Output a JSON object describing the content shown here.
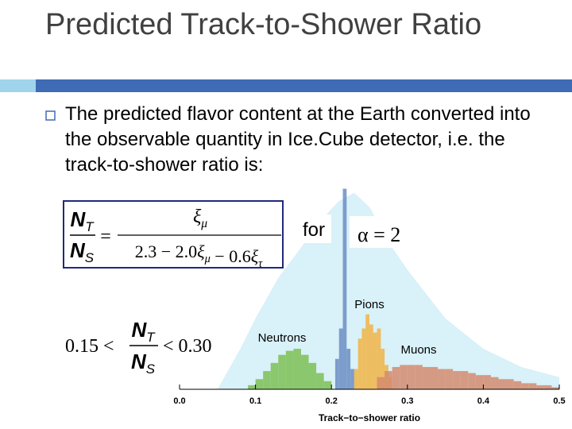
{
  "slide": {
    "title": "Predicted Track-to-Shower Ratio",
    "bullet": "The predicted flavor content at the Earth converted into the observable quantity in Ice.Cube detector, i.e. the track-to-shower ratio is:",
    "formula": {
      "lhs": {
        "num": {
          "base": "N",
          "sub": "T"
        },
        "den": {
          "base": "N",
          "sub": "S"
        }
      },
      "eq": "=",
      "rhs": {
        "num": [
          {
            "base": "ξ",
            "sub": "μ"
          }
        ],
        "den": [
          "2.3 − 2.0",
          {
            "base": "ξ",
            "sub": "μ"
          },
          " − 0.6",
          {
            "base": "ξ",
            "sub": "τ"
          }
        ]
      }
    },
    "for_text": "for",
    "condition": "α = 2",
    "range": {
      "left": "0.15 <",
      "num": {
        "base": "N",
        "sub": "T"
      },
      "den": {
        "base": "N",
        "sub": "S"
      },
      "right": "< 0.30"
    }
  },
  "chart_data": {
    "type": "histogram",
    "xlabel": "Track−to−shower ratio",
    "xlim": [
      0,
      0.5
    ],
    "xticks": [
      {
        "value": 0,
        "label": "0.0"
      },
      0.1,
      0.2,
      0.3,
      0.4,
      0.5
    ],
    "ylim": [
      0,
      100
    ],
    "series": [
      {
        "type": "area",
        "color": "#d9f1f8",
        "x": [
          0.05,
          0.08,
          0.1,
          0.13,
          0.16,
          0.19,
          0.21,
          0.23,
          0.25,
          0.28,
          0.3,
          0.35,
          0.4,
          0.45,
          0.5
        ],
        "values": [
          0,
          20,
          35,
          55,
          70,
          85,
          93,
          97,
          90,
          70,
          59,
          35,
          20,
          11,
          6
        ]
      },
      {
        "name": "Neutrons",
        "color": "#7dbf55",
        "bins": [
          0.09,
          0.1,
          0.11,
          0.12,
          0.13,
          0.14,
          0.15,
          0.16,
          0.17,
          0.18,
          0.19,
          0.2
        ],
        "values": [
          2,
          5,
          9,
          13,
          17,
          19,
          20,
          17,
          13,
          8,
          4
        ]
      },
      {
        "color": "#6b8ec4",
        "bins": [
          0.205,
          0.21,
          0.215,
          0.22,
          0.225,
          0.23
        ],
        "values": [
          15,
          30,
          99,
          20,
          10
        ]
      },
      {
        "name": "Pions",
        "color": "#f0b445",
        "bins": [
          0.23,
          0.235,
          0.24,
          0.245,
          0.25,
          0.255,
          0.26,
          0.265,
          0.27,
          0.275,
          0.28
        ],
        "values": [
          10,
          25,
          30,
          37,
          32,
          28,
          30,
          20,
          12,
          6
        ]
      },
      {
        "name": "Muons",
        "color": "#d38b6e",
        "bins": [
          0.26,
          0.27,
          0.28,
          0.29,
          0.3,
          0.31,
          0.32,
          0.33,
          0.34,
          0.35,
          0.36,
          0.37,
          0.38,
          0.39,
          0.4,
          0.41,
          0.42,
          0.43,
          0.44,
          0.45,
          0.46,
          0.47,
          0.48,
          0.49,
          0.5
        ],
        "values": [
          6,
          9,
          11,
          12,
          12,
          12,
          11,
          11,
          10,
          10,
          9,
          9,
          8,
          7,
          7,
          6,
          5,
          5,
          4,
          3,
          3,
          2,
          2,
          1
        ]
      }
    ]
  }
}
